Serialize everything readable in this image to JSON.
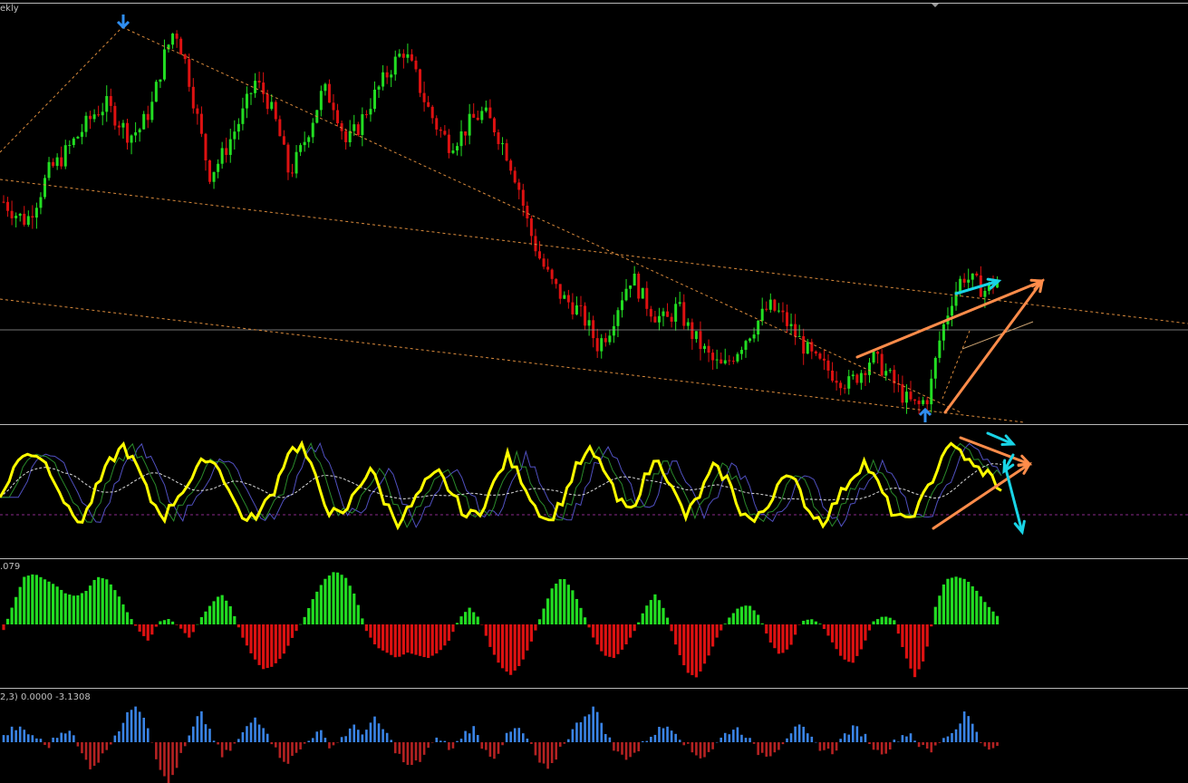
{
  "header": {
    "timeframe_label": "ekly"
  },
  "panes": {
    "macd_label": ".079",
    "osma_label": "2,3) 0.0000 -3.1308"
  },
  "colors": {
    "background": "#000000",
    "bull": "#22dd22",
    "bear": "#dd1111",
    "stoch_main": "#ffff00",
    "trend_dotted": "#d98a3c",
    "arrow_orange": "#ff8c4a",
    "arrow_cyan": "#19d4e6",
    "marker_blue": "#2f8ef0",
    "osma_pos": "#3a84e6",
    "osma_neg": "#b52222",
    "grid": "#b8b8b8"
  },
  "chart_data": [
    {
      "type": "candlestick",
      "pane": "price",
      "title": "",
      "trend": "peak in early third, long downtrend, double bottom at right edge, rebound",
      "close_series": [
        0.55,
        0.52,
        0.5,
        0.56,
        0.63,
        0.66,
        0.7,
        0.74,
        0.78,
        0.8,
        0.76,
        0.72,
        0.74,
        0.8,
        0.92,
        1.0,
        0.9,
        0.76,
        0.62,
        0.66,
        0.72,
        0.78,
        0.86,
        0.82,
        0.74,
        0.62,
        0.68,
        0.76,
        0.84,
        0.8,
        0.7,
        0.74,
        0.8,
        0.85,
        0.9,
        0.94,
        0.88,
        0.8,
        0.74,
        0.7,
        0.72,
        0.76,
        0.78,
        0.74,
        0.68,
        0.6,
        0.48,
        0.4,
        0.34,
        0.3,
        0.28,
        0.24,
        0.18,
        0.22,
        0.3,
        0.36,
        0.3,
        0.26,
        0.24,
        0.28,
        0.22,
        0.18,
        0.14,
        0.12,
        0.16,
        0.2,
        0.24,
        0.28,
        0.26,
        0.22,
        0.18,
        0.14,
        0.12,
        0.1,
        0.08,
        0.11,
        0.15,
        0.12,
        0.08,
        0.04,
        0.02,
        0.05,
        0.2,
        0.3,
        0.36,
        0.34,
        0.32,
        0.35
      ],
      "markers": [
        "top reversal arrow at peak",
        "bottom reversal arrow at final low"
      ]
    },
    {
      "type": "line",
      "pane": "stochastic",
      "series_shape": "oscillating between 0 and 100",
      "wave": [
        40,
        70,
        85,
        80,
        60,
        30,
        20,
        50,
        75,
        90,
        70,
        40,
        25,
        45,
        60,
        80,
        70,
        40,
        20,
        30,
        50,
        85,
        90,
        60,
        30,
        25,
        50,
        70,
        40,
        20,
        35,
        55,
        65,
        45,
        25,
        30,
        55,
        80,
        60,
        35,
        20,
        40,
        70,
        85,
        70,
        40,
        30,
        60,
        80,
        50,
        25,
        45,
        70,
        60,
        30,
        20,
        35,
        65,
        55,
        30,
        20,
        40,
        60,
        75,
        55,
        30,
        20,
        35,
        60,
        90,
        85,
        70,
        65,
        50
      ]
    },
    {
      "type": "bar",
      "pane": "macd_histogram",
      "values": [
        -0.1,
        0.4,
        0.85,
        0.9,
        0.8,
        0.7,
        0.55,
        0.5,
        0.6,
        0.85,
        0.8,
        0.55,
        0.2,
        -0.1,
        -0.3,
        0.05,
        0.1,
        -0.05,
        -0.25,
        0.1,
        0.35,
        0.55,
        0.3,
        -0.2,
        -0.55,
        -0.8,
        -0.75,
        -0.55,
        -0.2,
        0.1,
        0.5,
        0.8,
        0.95,
        0.85,
        0.5,
        -0.1,
        -0.4,
        -0.5,
        -0.6,
        -0.5,
        -0.55,
        -0.6,
        -0.5,
        -0.3,
        0.1,
        0.3,
        0.1,
        -0.4,
        -0.75,
        -0.9,
        -0.7,
        -0.3,
        0.2,
        0.65,
        0.85,
        0.6,
        0.2,
        -0.25,
        -0.55,
        -0.6,
        -0.4,
        -0.1,
        0.3,
        0.55,
        0.2,
        -0.4,
        -0.85,
        -0.95,
        -0.6,
        -0.2,
        0.1,
        0.3,
        0.35,
        0.15,
        -0.3,
        -0.55,
        -0.4,
        0.05,
        0.1,
        0.0,
        -0.3,
        -0.6,
        -0.7,
        -0.4,
        0.05,
        0.15,
        0.1,
        -0.5,
        -0.95,
        -0.6,
        0.3,
        0.8,
        0.85,
        0.8,
        0.6,
        0.35,
        0.15
      ]
    },
    {
      "type": "bar",
      "pane": "osma",
      "values": [
        0.1,
        0.3,
        0.2,
        0.1,
        -0.1,
        0.15,
        0.3,
        -0.2,
        -0.5,
        -0.3,
        0.1,
        0.4,
        0.8,
        0.5,
        -0.3,
        -0.9,
        -0.4,
        0.1,
        0.6,
        0.2,
        -0.3,
        -0.1,
        0.2,
        0.5,
        0.3,
        -0.2,
        -0.4,
        -0.2,
        0.1,
        0.2,
        -0.1,
        0.1,
        0.3,
        0.2,
        0.45,
        0.2,
        -0.2,
        -0.5,
        -0.4,
        -0.1,
        0.1,
        -0.2,
        0.15,
        0.3,
        -0.15,
        -0.3,
        0.1,
        0.3,
        0.05,
        -0.4,
        -0.6,
        -0.1,
        0.2,
        0.5,
        0.7,
        0.3,
        -0.2,
        -0.3,
        -0.2,
        0.1,
        0.25,
        0.35,
        0.1,
        -0.2,
        -0.3,
        -0.1,
        0.15,
        0.3,
        0.15,
        -0.2,
        -0.25,
        -0.1,
        0.2,
        0.3,
        0.05,
        -0.15,
        -0.2,
        0.15,
        0.3,
        0.1,
        -0.2,
        -0.15,
        0.1,
        0.2,
        -0.1,
        -0.2,
        0.1,
        0.2,
        0.6,
        0.3,
        -0.2,
        -0.1
      ]
    }
  ]
}
